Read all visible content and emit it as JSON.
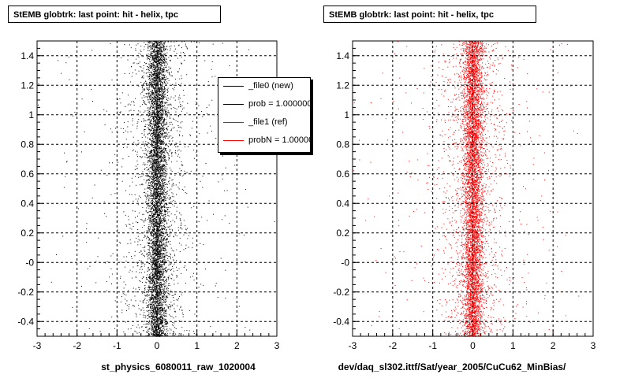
{
  "chart_data": [
    {
      "type": "scatter",
      "title": "StEMB globtrk: last point: hit - helix, tpc",
      "xlabel": "st_physics_6080011_raw_1020004",
      "ylabel": "",
      "xlim": [
        -3,
        3
      ],
      "ylim": [
        -0.5,
        1.5
      ],
      "x_ticks": [
        "-3",
        "-2",
        "-1",
        "0",
        "1",
        "2",
        "3"
      ],
      "y_ticks": [
        "-0.4",
        "-0.2",
        "-0",
        "0.2",
        "0.4",
        "0.6",
        "0.8",
        "1",
        "1.2",
        "1.4"
      ],
      "grid": true,
      "series": [
        {
          "name": "_file0 (new)",
          "color": "#000000",
          "distribution": {
            "x_center": 0.0,
            "x_core_width": 0.12,
            "x_tail_width": 0.9,
            "y_range": [
              -0.5,
              1.5
            ]
          }
        }
      ],
      "legend": {
        "placement": "top-right",
        "entries": [
          {
            "label": "_file0 (new)",
            "color": "#000000"
          },
          {
            "label": "prob = 1.000000",
            "color": "#000000"
          },
          {
            "label": "_file1 (ref)",
            "color": "#ff0000"
          },
          {
            "label": "probN = 1.000000",
            "color": "#ff0000"
          }
        ]
      }
    },
    {
      "type": "scatter",
      "title": "StEMB globtrk: last point: hit - helix, tpc",
      "xlabel": "dev/daq_sl302.ittf/Sat/year_2005/CuCu62_MinBias/",
      "ylabel": "",
      "xlim": [
        -3,
        3
      ],
      "ylim": [
        -0.5,
        1.5
      ],
      "x_ticks": [
        "-3",
        "-2",
        "-1",
        "0",
        "1",
        "2",
        "3"
      ],
      "y_ticks": [
        "-0.4",
        "-0.2",
        "-0",
        "0.2",
        "0.4",
        "0.6",
        "0.8",
        "1",
        "1.2",
        "1.4"
      ],
      "grid": true,
      "series": [
        {
          "name": "_file1 (ref)",
          "color": "#ff0000",
          "distribution": {
            "x_center": 0.0,
            "x_core_width": 0.12,
            "x_tail_width": 0.9,
            "y_range": [
              -0.5,
              1.5
            ]
          }
        }
      ]
    }
  ]
}
